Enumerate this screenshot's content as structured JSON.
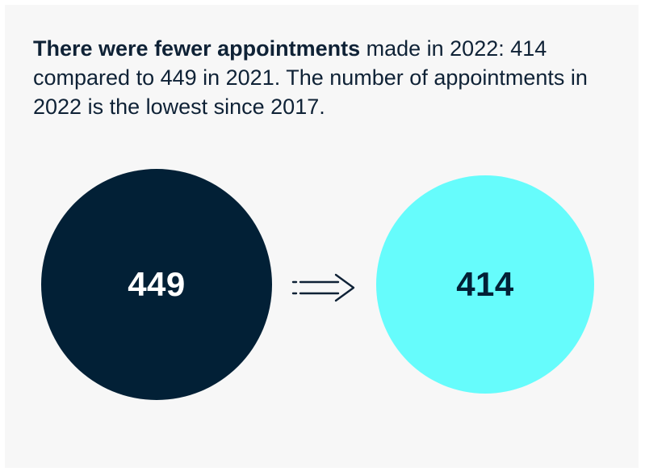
{
  "headline": {
    "bold": "There were fewer appointments",
    "rest": " made in 2022: 414 compared to 449 in 2021. The number of appointments in 2022 is the lowest since 2017."
  },
  "comparison": {
    "before": {
      "value": "449",
      "color": "#022036",
      "text_color": "#ffffff"
    },
    "after": {
      "value": "414",
      "color": "#66fcfc",
      "text_color": "#022036"
    }
  },
  "icons": {
    "arrow": "dashed-right-arrow-icon"
  },
  "colors": {
    "background": "#f7f7f7",
    "text": "#0f2236"
  }
}
